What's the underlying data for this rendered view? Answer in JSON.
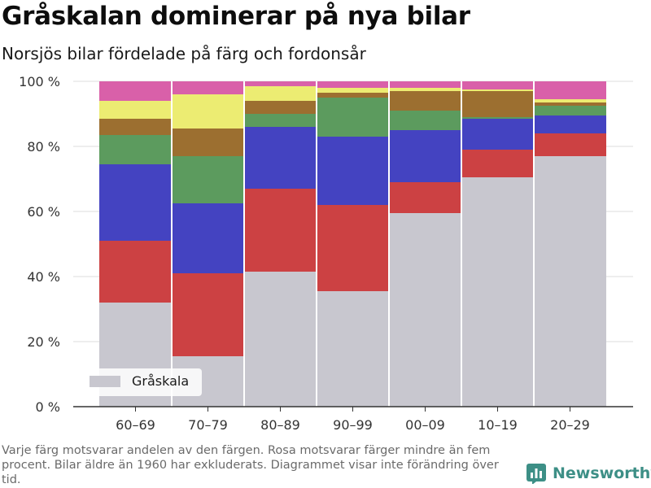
{
  "header": {
    "title": "Gråskalan dominerar på nya bilar",
    "subtitle": "Norsjös bilar fördelade på färg och fordonsår"
  },
  "footnote": "Varje färg motsvarar andelen av den färgen. Rosa motsvarar färger mindre än fem procent. Bilar äldre än 1960 har exkluderats. Diagrammet visar inte förändring över tid.",
  "brand": {
    "name": "Newsworthy",
    "icon": "bar-chart-logo-icon",
    "color": "#3d8f86"
  },
  "chart_data": {
    "type": "bar",
    "stacked": true,
    "categories": [
      "60–69",
      "70–79",
      "80–89",
      "90–99",
      "00–09",
      "10–19",
      "20–29"
    ],
    "series": [
      {
        "name": "Gråskala",
        "color": "#c8c7cf",
        "values": [
          32,
          15.5,
          41.5,
          35.5,
          59.5,
          70.5,
          77
        ]
      },
      {
        "color": "#cc4143",
        "values": [
          19,
          25.5,
          25.5,
          26.5,
          9.5,
          8.5,
          7
        ]
      },
      {
        "color": "#4443c1",
        "values": [
          23.5,
          21.5,
          19,
          21,
          16,
          9.5,
          5.5
        ]
      },
      {
        "color": "#5c9b5e",
        "values": [
          9,
          14.5,
          4,
          12,
          6,
          0.5,
          3
        ]
      },
      {
        "color": "#9c6f30",
        "values": [
          5,
          8.5,
          4,
          1.5,
          6,
          8,
          1
        ]
      },
      {
        "color": "#ecec72",
        "values": [
          5.5,
          10.5,
          4.5,
          1.5,
          1,
          0.5,
          1
        ]
      },
      {
        "color": "#d960a9",
        "values": [
          6,
          4,
          1.5,
          2,
          2,
          2.5,
          5.5
        ]
      }
    ],
    "y_ticks": [
      0,
      20,
      40,
      60,
      80,
      100
    ],
    "y_tick_suffix": " %",
    "ylim": [
      0,
      100
    ],
    "grid": true,
    "legend": {
      "entries": [
        "Gråskala"
      ],
      "placement": "bottom-left"
    }
  }
}
